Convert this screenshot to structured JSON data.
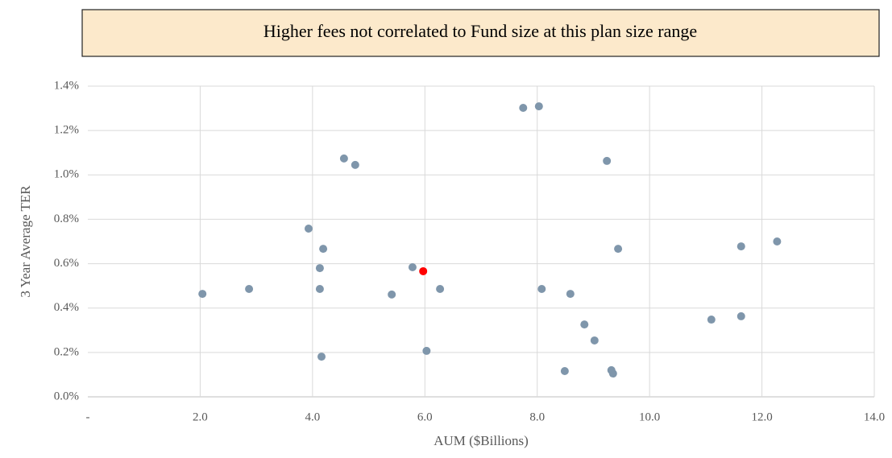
{
  "chart_data": {
    "type": "scatter",
    "title": "Higher fees not correlated to Fund size at this plan size range",
    "x_label": "AUM ($Billions)",
    "y_label": "3 Year Average TER",
    "xlim": [
      0,
      14
    ],
    "ylim": [
      0,
      1.4
    ],
    "xticks": [
      {
        "value": 0,
        "label": "-"
      },
      {
        "value": 2,
        "label": "2.0"
      },
      {
        "value": 4,
        "label": "4.0"
      },
      {
        "value": 6,
        "label": "6.0"
      },
      {
        "value": 8,
        "label": "8.0"
      },
      {
        "value": 10,
        "label": "10.0"
      },
      {
        "value": 12,
        "label": "12.0"
      },
      {
        "value": 14,
        "label": "14.0"
      }
    ],
    "yticks": [
      {
        "value": 0,
        "label": "0.0%"
      },
      {
        "value": 0.2,
        "label": "0.2%"
      },
      {
        "value": 0.4,
        "label": "0.4%"
      },
      {
        "value": 0.6,
        "label": "0.6%"
      },
      {
        "value": 0.8,
        "label": "0.8%"
      },
      {
        "value": 1.0,
        "label": "1.0%"
      },
      {
        "value": 1.2,
        "label": "1.2%"
      },
      {
        "value": 1.4,
        "label": "1.4%"
      }
    ],
    "grid": true,
    "series": [
      {
        "color": "#7f96ab",
        "x": [
          2.04,
          2.87,
          3.93,
          4.13,
          4.19,
          4.13,
          4.16,
          4.56,
          4.76,
          5.41,
          5.78,
          6.27,
          6.03,
          7.75,
          8.03,
          8.08,
          8.59,
          8.49,
          8.84,
          9.02,
          9.24,
          9.44,
          9.32,
          9.35,
          11.1,
          11.63,
          11.63,
          12.27
        ],
        "values": [
          0.464,
          0.486,
          0.758,
          0.58,
          0.667,
          0.486,
          0.181,
          1.074,
          1.045,
          0.461,
          0.584,
          0.486,
          0.207,
          1.302,
          1.309,
          0.486,
          0.464,
          0.116,
          0.326,
          0.254,
          1.063,
          0.667,
          0.12,
          0.105,
          0.348,
          0.363,
          0.678,
          0.7
        ]
      },
      {
        "color": "#ff0000",
        "x": [
          5.97
        ],
        "values": [
          0.566
        ]
      }
    ]
  }
}
